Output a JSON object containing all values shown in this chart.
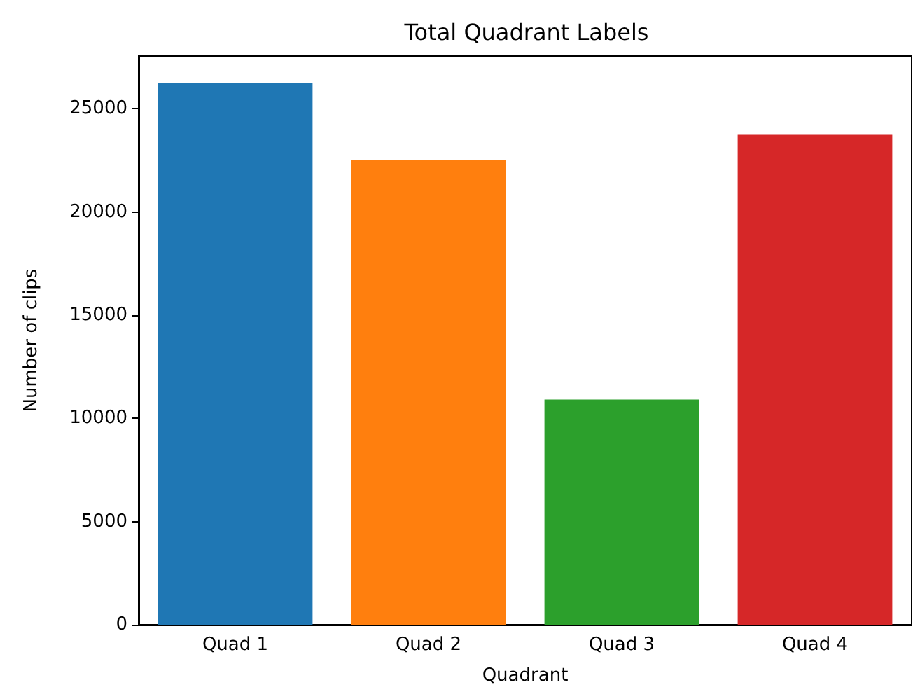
{
  "chart_data": {
    "type": "bar",
    "title": "Total Quadrant Labels",
    "xlabel": "Quadrant",
    "ylabel": "Number of clips",
    "categories": [
      "Quad 1",
      "Quad 2",
      "Quad 3",
      "Quad 4"
    ],
    "values": [
      26240,
      22510,
      10910,
      23730
    ],
    "colors": [
      "#1f77b4",
      "#ff7f0e",
      "#2ca02c",
      "#d62728"
    ],
    "ylim": [
      0,
      27550
    ],
    "yticks": [
      0,
      5000,
      10000,
      15000,
      20000,
      25000
    ],
    "grid": false
  }
}
